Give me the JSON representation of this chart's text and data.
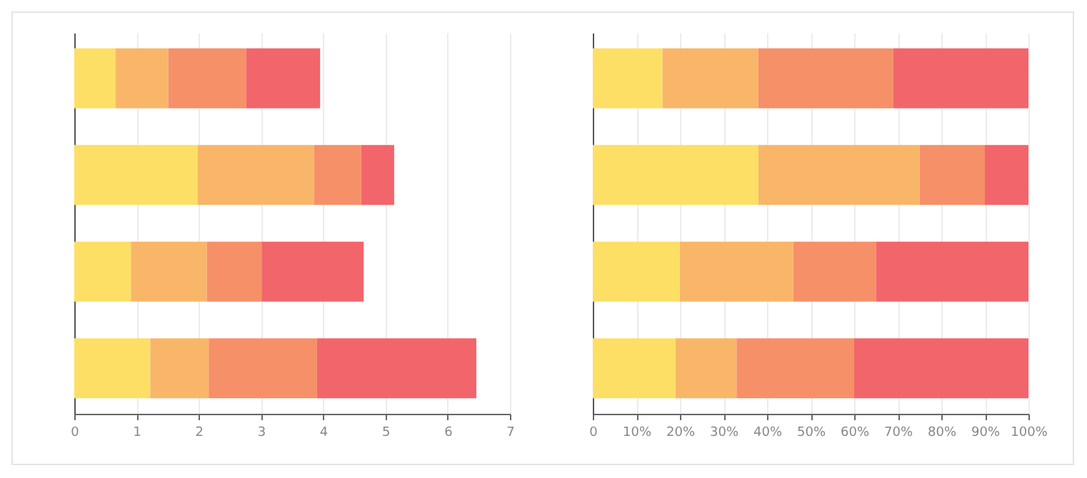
{
  "chart_data": [
    {
      "type": "bar",
      "orientation": "horizontal",
      "stacked": true,
      "categories": [
        null,
        null,
        null,
        null
      ],
      "series": [
        {
          "color": "#fddf66",
          "values": [
            0.66,
            1.98,
            0.91,
            1.22
          ]
        },
        {
          "color": "#f9b669",
          "values": [
            0.85,
            1.87,
            1.22,
            0.94
          ]
        },
        {
          "color": "#f69069",
          "values": [
            1.25,
            0.76,
            0.88,
            1.74
          ]
        },
        {
          "color": "#f2656b",
          "values": [
            1.19,
            0.53,
            1.64,
            2.56
          ]
        }
      ],
      "xlim": [
        0,
        7
      ],
      "xticks": [
        0,
        1,
        2,
        3,
        4,
        5,
        6,
        7
      ],
      "grid": "x",
      "tick_labels": "x"
    },
    {
      "type": "bar",
      "orientation": "horizontal",
      "stacked": true,
      "categories": [
        null,
        null,
        null,
        null
      ],
      "series": [
        {
          "color": "#fddf66",
          "values": [
            16,
            38,
            20,
            19
          ]
        },
        {
          "color": "#f9b669",
          "values": [
            22,
            37,
            26,
            14
          ]
        },
        {
          "color": "#f69069",
          "values": [
            31,
            15,
            19,
            27
          ]
        },
        {
          "color": "#f2656b",
          "values": [
            31,
            10,
            35,
            40
          ]
        }
      ],
      "xlim": [
        0,
        100
      ],
      "xticks": [
        0,
        {
          "value": 10,
          "label": "10%"
        },
        {
          "value": 20,
          "label": "20%"
        },
        {
          "value": 30,
          "label": "30%"
        },
        {
          "value": 40,
          "label": "40%"
        },
        {
          "value": 50,
          "label": "50%"
        },
        {
          "value": 60,
          "label": "60%"
        },
        {
          "value": 70,
          "label": "70%"
        },
        {
          "value": 80,
          "label": "80%"
        },
        {
          "value": 90,
          "label": "90%"
        },
        {
          "value": 100,
          "label": "100%"
        }
      ],
      "grid": "x",
      "tick_labels": "x"
    }
  ]
}
